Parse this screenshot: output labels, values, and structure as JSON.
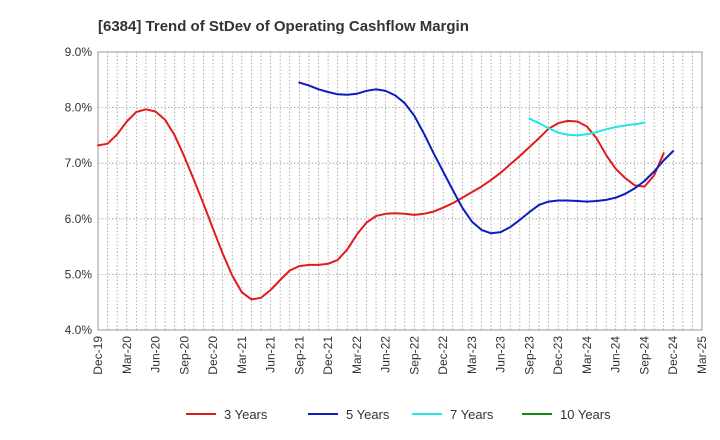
{
  "chart_data": {
    "type": "line",
    "title": "[6384]  Trend of StDev of Operating Cashflow Margin",
    "xlabel": "",
    "ylabel": "",
    "ylim": [
      4.0,
      9.0
    ],
    "y_ticks": [
      "4.0%",
      "5.0%",
      "6.0%",
      "7.0%",
      "8.0%",
      "9.0%"
    ],
    "x_ticks": [
      "Dec-19",
      "Mar-20",
      "Jun-20",
      "Sep-20",
      "Dec-20",
      "Mar-21",
      "Jun-21",
      "Sep-21",
      "Dec-21",
      "Mar-22",
      "Jun-22",
      "Sep-22",
      "Dec-22",
      "Mar-23",
      "Jun-23",
      "Sep-23",
      "Dec-23",
      "Mar-24",
      "Jun-24",
      "Sep-24",
      "Dec-24",
      "Mar-25"
    ],
    "grid": true,
    "legend_position": "bottom",
    "series": [
      {
        "name": "3 Years",
        "color": "#e31a1c",
        "start": "Dec-19",
        "values": [
          7.32,
          7.35,
          7.52,
          7.75,
          7.92,
          7.97,
          7.93,
          7.78,
          7.5,
          7.12,
          6.7,
          6.27,
          5.82,
          5.38,
          4.98,
          4.68,
          4.55,
          4.58,
          4.72,
          4.9,
          5.07,
          5.15,
          5.17,
          5.17,
          5.19,
          5.26,
          5.45,
          5.72,
          5.93,
          6.05,
          6.09,
          6.1,
          6.09,
          6.07,
          6.09,
          6.13,
          6.2,
          6.28,
          6.38,
          6.48,
          6.58,
          6.7,
          6.83,
          6.98,
          7.13,
          7.29,
          7.45,
          7.62,
          7.72,
          7.76,
          7.75,
          7.66,
          7.45,
          7.15,
          6.9,
          6.73,
          6.6,
          6.58,
          6.78,
          7.18
        ]
      },
      {
        "name": "5 Years",
        "color": "#0a1dc0",
        "start": "Sep-21",
        "values": [
          8.45,
          8.4,
          8.33,
          8.28,
          8.24,
          8.23,
          8.25,
          8.3,
          8.33,
          8.3,
          8.22,
          8.08,
          7.85,
          7.53,
          7.18,
          6.85,
          6.52,
          6.2,
          5.95,
          5.8,
          5.74,
          5.76,
          5.85,
          5.98,
          6.12,
          6.25,
          6.31,
          6.33,
          6.33,
          6.32,
          6.31,
          6.32,
          6.34,
          6.38,
          6.45,
          6.55,
          6.68,
          6.85,
          7.05,
          7.22
        ]
      },
      {
        "name": "7 Years",
        "color": "#22e6e6",
        "start": "Sep-23",
        "values": [
          7.8,
          7.72,
          7.63,
          7.55,
          7.51,
          7.5,
          7.52,
          7.56,
          7.61,
          7.65,
          7.68,
          7.7,
          7.73
        ]
      },
      {
        "name": "10 Years",
        "color": "#138a13",
        "start": "Sep-24",
        "values": []
      }
    ]
  }
}
